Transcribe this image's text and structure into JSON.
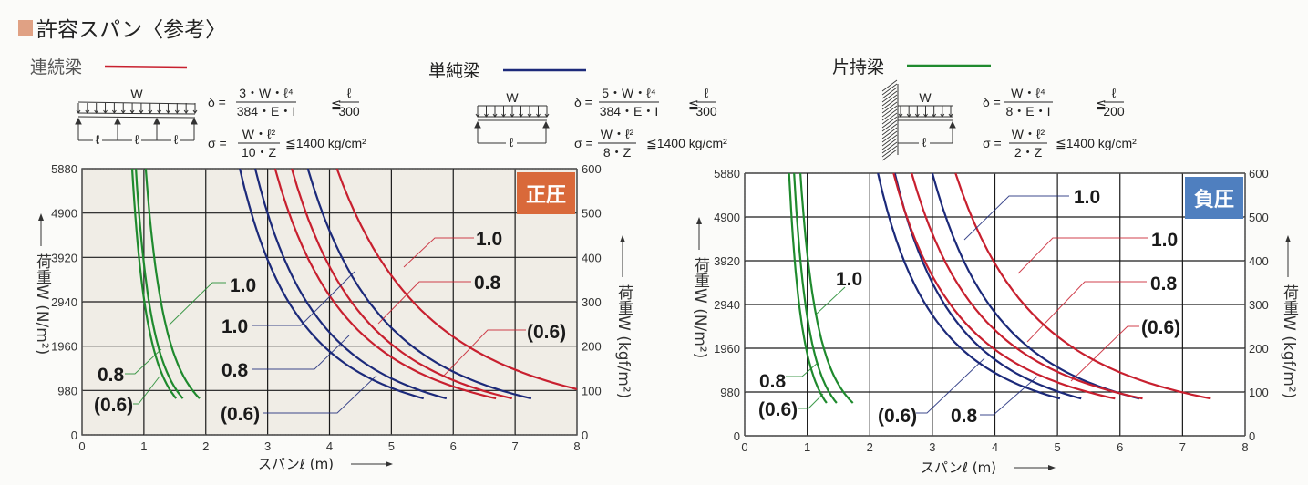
{
  "header": {
    "title": "許容スパン〈参考〉",
    "title_marker_color": "#e0a184"
  },
  "legend": [
    {
      "name": "連続梁",
      "color": "#c8202f"
    },
    {
      "name": "単純梁",
      "color": "#1c2a7a"
    },
    {
      "name": "片持梁",
      "color": "#1f8a2e"
    }
  ],
  "diagrams": {
    "load_label": "W",
    "span_label": "ℓ",
    "continuous": {
      "delta_lhs": "δ =",
      "delta_num": "3・W・ℓ⁴",
      "delta_den": "384・E・I",
      "leq": "≦",
      "limit_num": "ℓ",
      "limit_den": "300",
      "sigma_lhs": "σ =",
      "sigma_num": "W・ℓ²",
      "sigma_den": "10・Z",
      "sigma_limit": "≦1400 kg/cm²"
    },
    "simple": {
      "delta_lhs": "δ =",
      "delta_num": "5・W・ℓ⁴",
      "delta_den": "384・E・I",
      "leq": "≦",
      "limit_num": "ℓ",
      "limit_den": "300",
      "sigma_lhs": "σ =",
      "sigma_num": "W・ℓ²",
      "sigma_den": "8・Z",
      "sigma_limit": "≦1400 kg/cm²"
    },
    "cantilever": {
      "delta_lhs": "δ =",
      "delta_num": "W・ℓ⁴",
      "delta_den": "8・E・I",
      "leq": "≦",
      "limit_num": "ℓ",
      "limit_den": "200",
      "sigma_lhs": "σ =",
      "sigma_num": "W・ℓ²",
      "sigma_den": "2・Z",
      "sigma_limit": "≦1400 kg/cm²"
    }
  },
  "chart_data": [
    {
      "type": "line",
      "title": "正圧",
      "badge_color": "#d9693a",
      "xlabel": "スパンℓ (m)",
      "ylabel_left": "荷重W (N/m²)",
      "ylabel_right": "荷重W (kgf/m²)",
      "xlim": [
        0,
        8
      ],
      "ylim": [
        0,
        600
      ],
      "ylim_left": [
        0,
        5880
      ],
      "grid": true,
      "x_ticks": [
        "0",
        "1",
        "2",
        "3",
        "4",
        "5",
        "6",
        "7",
        "8"
      ],
      "y_ticks_left": [
        "0",
        "980",
        "1960",
        "2940",
        "3920",
        "4900",
        "5880"
      ],
      "y_ticks_right": [
        "0",
        "100",
        "200",
        "300",
        "400",
        "500",
        "600"
      ],
      "series": [
        {
          "name": "片持梁 (0.6)",
          "label": "(0.6)",
          "color": "#1f8a2e",
          "points": [
            [
              0.81,
              600
            ],
            [
              1.52,
              82
            ]
          ]
        },
        {
          "name": "片持梁 0.8",
          "label": "0.8",
          "color": "#1f8a2e",
          "points": [
            [
              0.87,
              600
            ],
            [
              1.63,
              82
            ]
          ]
        },
        {
          "name": "片持梁 1.0",
          "label": "1.0",
          "color": "#1f8a2e",
          "points": [
            [
              1.03,
              600
            ],
            [
              1.9,
              82
            ]
          ]
        },
        {
          "name": "単純梁 (0.6)",
          "label": "(0.6)",
          "color": "#1c2a7a",
          "points": [
            [
              2.55,
              600
            ],
            [
              5.52,
              82
            ]
          ]
        },
        {
          "name": "単純梁 0.8",
          "label": "0.8",
          "color": "#1c2a7a",
          "points": [
            [
              2.8,
              600
            ],
            [
              5.89,
              82
            ]
          ]
        },
        {
          "name": "単純梁 1.0",
          "label": "1.0",
          "color": "#1c2a7a",
          "points": [
            [
              3.65,
              600
            ],
            [
              7.26,
              82
            ]
          ]
        },
        {
          "name": "連続梁 (0.6)",
          "label": "(0.6)",
          "color": "#c8202f",
          "points": [
            [
              3.12,
              600
            ],
            [
              6.69,
              82
            ]
          ]
        },
        {
          "name": "連続梁 0.8",
          "label": "0.8",
          "color": "#c8202f",
          "points": [
            [
              3.39,
              600
            ],
            [
              6.95,
              82
            ]
          ]
        },
        {
          "name": "連続梁 1.0",
          "label": "1.0",
          "color": "#c8202f",
          "points": [
            [
              4.12,
              600
            ],
            [
              8.0,
              103
            ]
          ]
        }
      ]
    },
    {
      "type": "line",
      "title": "負圧",
      "badge_color": "#4f7fbf",
      "xlabel": "スパンℓ (m)",
      "ylabel_left": "荷重W (N/m²)",
      "ylabel_right": "荷重W (kgf/m²)",
      "xlim": [
        0,
        8
      ],
      "ylim": [
        0,
        600
      ],
      "ylim_left": [
        0,
        5880
      ],
      "grid": true,
      "x_ticks": [
        "0",
        "1",
        "2",
        "3",
        "4",
        "5",
        "6",
        "7",
        "8"
      ],
      "y_ticks_left": [
        "0",
        "980",
        "1960",
        "2940",
        "3920",
        "4900",
        "5880"
      ],
      "y_ticks_right": [
        "0",
        "100",
        "200",
        "300",
        "400",
        "500",
        "600"
      ],
      "series": [
        {
          "name": "片持梁 (0.6)",
          "label": "(0.6)",
          "color": "#1f8a2e",
          "points": [
            [
              0.71,
              600
            ],
            [
              1.31,
              75
            ]
          ]
        },
        {
          "name": "片持梁 0.8",
          "label": "0.8",
          "color": "#1f8a2e",
          "points": [
            [
              0.79,
              600
            ],
            [
              1.47,
              75
            ]
          ]
        },
        {
          "name": "片持梁 1.0",
          "label": "1.0",
          "color": "#1f8a2e",
          "points": [
            [
              0.89,
              600
            ],
            [
              1.73,
              75
            ]
          ]
        },
        {
          "name": "単純梁 (0.6)",
          "label": "(0.6)",
          "color": "#1c2a7a",
          "points": [
            [
              2.13,
              600
            ],
            [
              5.04,
              85
            ]
          ]
        },
        {
          "name": "単純梁 0.8",
          "label": "0.8",
          "color": "#1c2a7a",
          "points": [
            [
              2.4,
              600
            ],
            [
              5.38,
              85
            ]
          ]
        },
        {
          "name": "単純梁 1.0",
          "label": "1.0",
          "color": "#1c2a7a",
          "points": [
            [
              3.0,
              600
            ],
            [
              6.31,
              85
            ]
          ]
        },
        {
          "name": "連続梁 (0.6)",
          "label": "(0.6)",
          "color": "#c8202f",
          "points": [
            [
              2.38,
              600
            ],
            [
              5.92,
              85
            ]
          ]
        },
        {
          "name": "連続梁 0.8",
          "label": "0.8",
          "color": "#c8202f",
          "points": [
            [
              2.67,
              600
            ],
            [
              6.36,
              85
            ]
          ]
        },
        {
          "name": "連続梁 1.0",
          "label": "1.0",
          "color": "#c8202f",
          "points": [
            [
              3.37,
              600
            ],
            [
              7.45,
              85
            ]
          ]
        }
      ]
    }
  ]
}
